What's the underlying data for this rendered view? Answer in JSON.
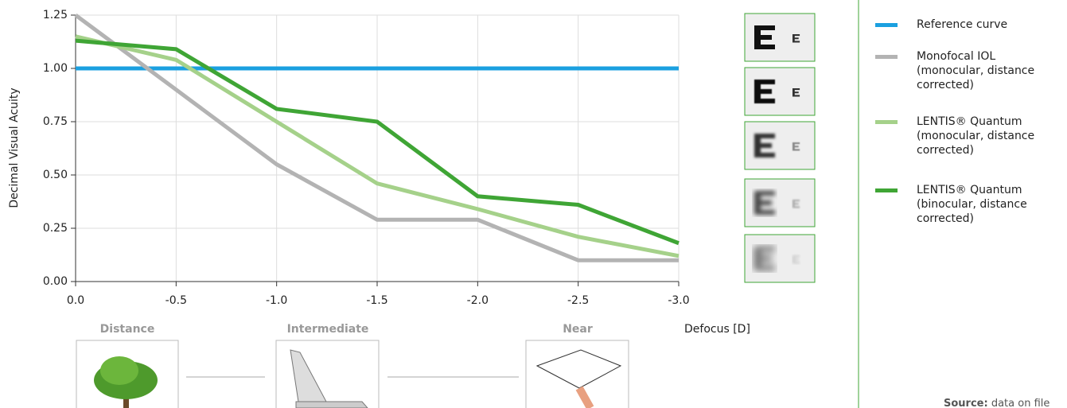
{
  "chart_data": {
    "type": "line",
    "y_label": "Decimal Visual Acuity",
    "x_label": "Defocus [D]",
    "x": [
      0,
      -0.5,
      -1.0,
      -1.5,
      -2.0,
      -2.5,
      -3.0
    ],
    "xlim": [
      0,
      -3.0
    ],
    "xticks": [
      {
        "value": 0,
        "label": "0.0"
      },
      -0.5,
      {
        "value": -1,
        "label": "-1.0"
      },
      -1.5,
      {
        "value": -2,
        "label": "-2.0"
      },
      -2.5,
      {
        "value": -3,
        "label": "-3.0"
      }
    ],
    "ylim": [
      0,
      1.25
    ],
    "yticks": [
      {
        "value": 0,
        "label": "0.00"
      },
      0.25,
      {
        "value": 0.5,
        "label": "0.50"
      },
      0.75,
      {
        "value": 1,
        "label": "1.00"
      },
      1.25
    ],
    "grid": true,
    "series": [
      {
        "name": "Reference curve",
        "color": "#1ba0e0",
        "values": [
          1.0,
          1.0,
          1.0,
          1.0,
          1.0,
          1.0,
          1.0
        ]
      },
      {
        "name": "Monofocal IOL (monocular, distance corrected)",
        "color": "#b3b3b3",
        "values": [
          1.25,
          0.9,
          0.55,
          0.29,
          0.29,
          0.1,
          0.1
        ]
      },
      {
        "name": "LENTIS® Quantum (monocular, distance corrected)",
        "color": "#a5d18a",
        "values": [
          1.15,
          1.04,
          0.75,
          0.46,
          0.34,
          0.21,
          0.12
        ]
      },
      {
        "name": "LENTIS® Quantum (binocular, distance corrected)",
        "color": "#3fa535",
        "values": [
          1.13,
          1.09,
          0.81,
          0.75,
          0.4,
          0.36,
          0.18
        ]
      }
    ],
    "distance_labels": [
      "Distance",
      "Intermediate",
      "Near"
    ],
    "source": {
      "label": "Source:",
      "text": "data on file"
    }
  }
}
